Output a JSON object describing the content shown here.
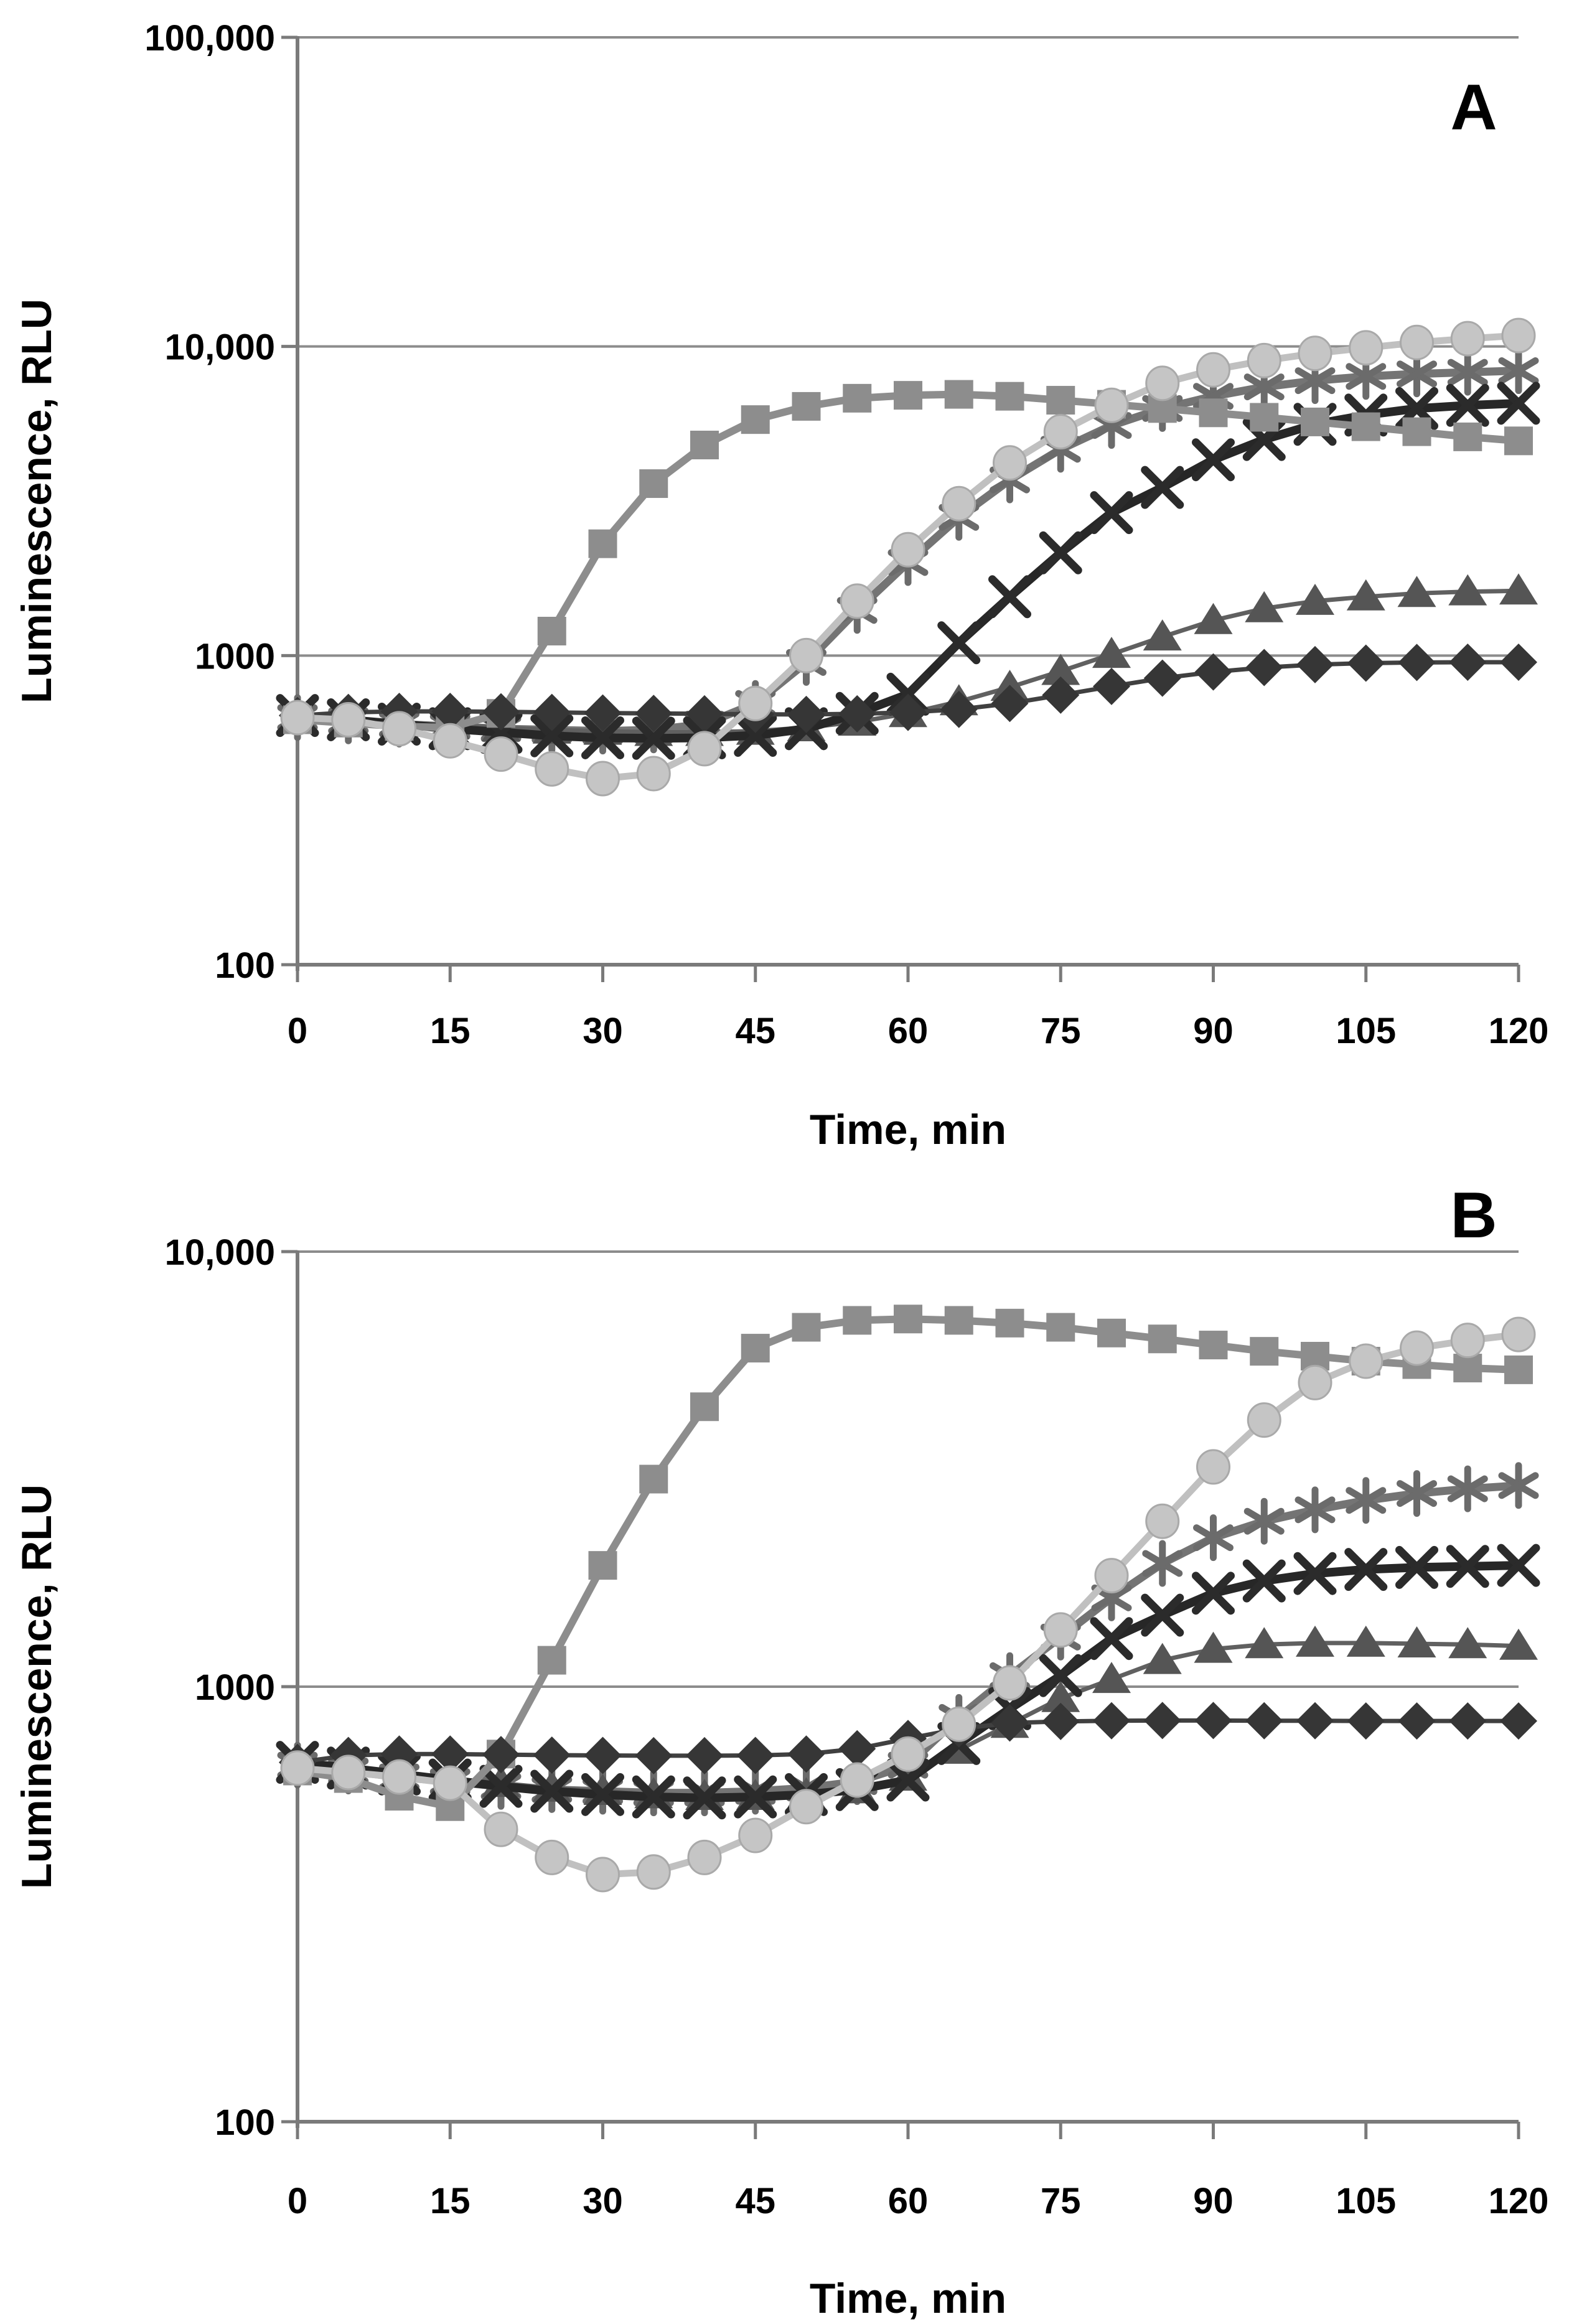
{
  "figure": {
    "background": "#ffffff",
    "grid_color": "#8c8c8c",
    "axis_color": "#7a7a7a",
    "text_color": "#000000"
  },
  "chart_data": [
    {
      "panel_label": "A",
      "type": "line",
      "xlabel": "Time, min",
      "ylabel": "Luminescence, RLU",
      "xlim": [
        0,
        120
      ],
      "ylim": [
        100,
        100000
      ],
      "xticks": [
        0,
        15,
        30,
        45,
        60,
        75,
        90,
        105,
        120
      ],
      "yticks": [
        {
          "value": 100000,
          "label": "100,000"
        },
        {
          "value": 10000,
          "label": "10,000"
        },
        {
          "value": 1000,
          "label": "1000"
        },
        {
          "value": 100,
          "label": "100"
        }
      ],
      "grid": true,
      "legend": "none",
      "x": [
        0,
        5,
        10,
        15,
        20,
        25,
        30,
        35,
        40,
        45,
        50,
        55,
        60,
        65,
        70,
        75,
        80,
        85,
        90,
        95,
        100,
        105,
        110,
        115,
        120
      ],
      "series": [
        {
          "name": "star-series",
          "marker": "star",
          "color": "#6b6b6b",
          "line_color": "#747474",
          "line_width": 13,
          "values": [
            630,
            615,
            600,
            590,
            580,
            575,
            570,
            575,
            600,
            700,
            950,
            1400,
            2000,
            2800,
            3700,
            4650,
            5550,
            6300,
            6900,
            7400,
            7750,
            8000,
            8150,
            8250,
            8350
          ]
        },
        {
          "name": "triangle-series",
          "marker": "triangle",
          "color": "#555555",
          "line_color": "#606060",
          "line_width": 7,
          "values": [
            640,
            625,
            610,
            595,
            585,
            575,
            570,
            565,
            565,
            570,
            585,
            610,
            650,
            710,
            790,
            890,
            1010,
            1150,
            1300,
            1420,
            1500,
            1550,
            1590,
            1610,
            1620
          ]
        },
        {
          "name": "x-series",
          "marker": "x",
          "color": "#2b2b2b",
          "line_color": "#272727",
          "line_width": 14,
          "values": [
            640,
            620,
            600,
            580,
            565,
            550,
            542,
            540,
            542,
            552,
            580,
            650,
            750,
            1100,
            1550,
            2150,
            2900,
            3500,
            4300,
            5000,
            5600,
            6000,
            6300,
            6450,
            6550
          ]
        },
        {
          "name": "square-series",
          "marker": "square",
          "color": "#8d8d8d",
          "line_color": "#8d8d8d",
          "line_width": 12,
          "values": [
            620,
            605,
            590,
            585,
            650,
            1200,
            2300,
            3600,
            4800,
            5800,
            6400,
            6800,
            6950,
            7000,
            6900,
            6700,
            6500,
            6300,
            6100,
            5900,
            5700,
            5500,
            5300,
            5100,
            4950
          ]
        },
        {
          "name": "diamond-series",
          "marker": "diamond",
          "color": "#363636",
          "line_color": "#404040",
          "line_width": 7,
          "values": [
            640,
            655,
            660,
            660,
            658,
            655,
            652,
            650,
            648,
            646,
            645,
            648,
            655,
            670,
            700,
            745,
            795,
            845,
            885,
            915,
            935,
            945,
            950,
            952,
            952
          ]
        },
        {
          "name": "circle-series",
          "marker": "circle",
          "color": "#c5c5c5",
          "stroke": "#a9a9a9",
          "line_color": "#c0c0c0",
          "line_width": 11,
          "values": [
            630,
            620,
            580,
            530,
            480,
            430,
            400,
            415,
            500,
            700,
            1000,
            1500,
            2200,
            3100,
            4200,
            5300,
            6450,
            7600,
            8400,
            9000,
            9500,
            9900,
            10300,
            10600,
            10850
          ]
        }
      ]
    },
    {
      "panel_label": "B",
      "type": "line",
      "xlabel": "Time, min",
      "ylabel": "Luminescence, RLU",
      "xlim": [
        0,
        120
      ],
      "ylim": [
        100,
        10000
      ],
      "xticks": [
        0,
        15,
        30,
        45,
        60,
        75,
        90,
        105,
        120
      ],
      "yticks": [
        {
          "value": 10000,
          "label": "10,000"
        },
        {
          "value": 1000,
          "label": "1000"
        },
        {
          "value": 100,
          "label": "100"
        }
      ],
      "grid": true,
      "legend": "none",
      "x": [
        0,
        5,
        10,
        15,
        20,
        25,
        30,
        35,
        40,
        45,
        50,
        55,
        60,
        65,
        70,
        75,
        80,
        85,
        90,
        95,
        100,
        105,
        110,
        115,
        120
      ],
      "series": [
        {
          "name": "star-series",
          "marker": "star",
          "color": "#6b6b6b",
          "line_color": "#747474",
          "line_width": 13,
          "values": [
            660,
            640,
            620,
            605,
            590,
            580,
            575,
            570,
            570,
            575,
            585,
            605,
            660,
            850,
            1060,
            1300,
            1600,
            1920,
            2200,
            2400,
            2550,
            2680,
            2780,
            2850,
            2900
          ]
        },
        {
          "name": "triangle-series",
          "marker": "triangle",
          "color": "#555555",
          "line_color": "#606060",
          "line_width": 7,
          "values": [
            660,
            645,
            630,
            615,
            600,
            585,
            575,
            565,
            560,
            560,
            565,
            580,
            620,
            715,
            820,
            940,
            1040,
            1150,
            1220,
            1250,
            1260,
            1260,
            1255,
            1250,
            1240
          ]
        },
        {
          "name": "x-series",
          "marker": "x",
          "color": "#2b2b2b",
          "line_color": "#272727",
          "line_width": 14,
          "values": [
            670,
            650,
            630,
            610,
            590,
            575,
            565,
            558,
            555,
            558,
            565,
            580,
            610,
            740,
            890,
            1060,
            1290,
            1460,
            1640,
            1750,
            1820,
            1860,
            1880,
            1890,
            1900
          ]
        },
        {
          "name": "square-series",
          "marker": "square",
          "color": "#8d8d8d",
          "line_color": "#8d8d8d",
          "line_width": 12,
          "values": [
            640,
            615,
            560,
            530,
            700,
            1150,
            1900,
            3000,
            4400,
            6000,
            6700,
            6950,
            7000,
            6950,
            6850,
            6700,
            6500,
            6300,
            6100,
            5900,
            5750,
            5600,
            5500,
            5400,
            5350
          ]
        },
        {
          "name": "diamond-series",
          "marker": "diamond",
          "color": "#363636",
          "line_color": "#404040",
          "line_width": 7,
          "values": [
            670,
            695,
            700,
            700,
            698,
            696,
            695,
            694,
            694,
            695,
            700,
            720,
            760,
            800,
            825,
            832,
            835,
            836,
            836,
            835,
            835,
            834,
            834,
            834,
            834
          ]
        },
        {
          "name": "circle-series",
          "marker": "circle",
          "color": "#c5c5c5",
          "stroke": "#a9a9a9",
          "line_color": "#c0c0c0",
          "line_width": 11,
          "values": [
            650,
            635,
            620,
            600,
            470,
            405,
            370,
            375,
            405,
            455,
            530,
            610,
            700,
            820,
            1020,
            1350,
            1800,
            2400,
            3200,
            4100,
            5000,
            5600,
            6000,
            6250,
            6450
          ]
        }
      ]
    }
  ]
}
